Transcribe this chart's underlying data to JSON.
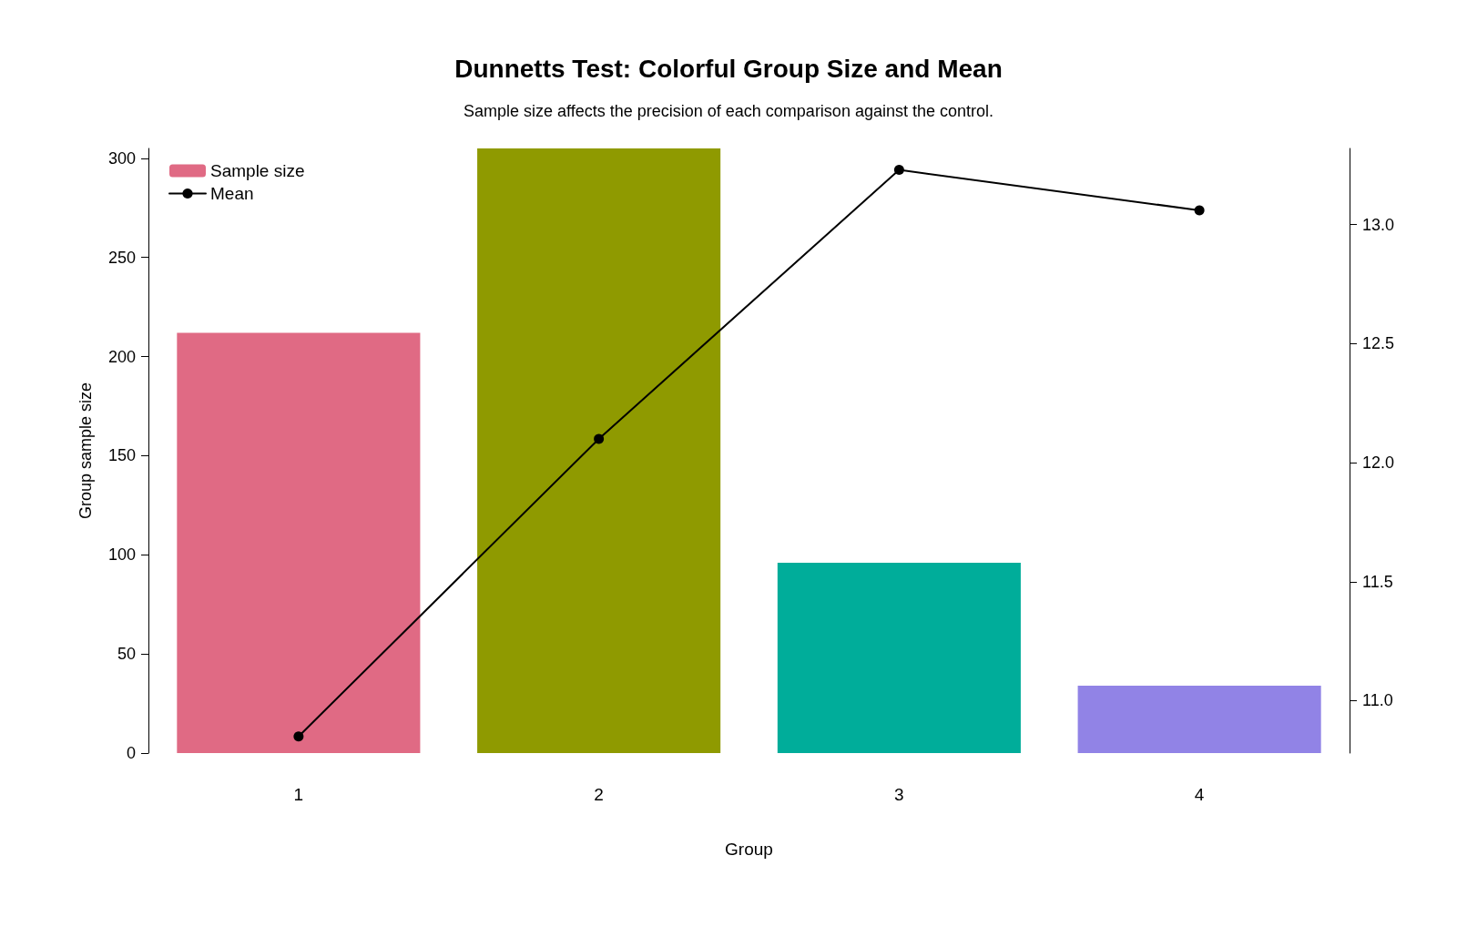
{
  "chart_data": {
    "type": "bar",
    "title": "Dunnetts Test: Colorful Group Size and Mean",
    "subtitle": "Sample size affects the precision of each comparison against the control.",
    "xlabel": "Group",
    "ylabel": "Group sample size",
    "categories": [
      "1",
      "2",
      "3",
      "4"
    ],
    "ylim": [
      0,
      305
    ],
    "yticks": [
      0,
      50,
      100,
      150,
      200,
      250,
      300
    ],
    "y2lim": [
      10.78,
      13.32
    ],
    "y2ticks": [
      {
        "value": 11,
        "label": "11.0"
      },
      {
        "value": 11.5,
        "label": "11.5"
      },
      {
        "value": 12,
        "label": "12.0"
      },
      {
        "value": 12.5,
        "label": "12.5"
      },
      {
        "value": 13,
        "label": "13.0"
      }
    ],
    "legend": "top left",
    "grid": false,
    "marker": "circle",
    "line_style": "solid",
    "series": [
      {
        "name": "Sample size",
        "colors": [
          "#e06a84",
          "#8f9a00",
          "#00ad9a",
          "#9183e6"
        ],
        "values": [
          212,
          305,
          96,
          34
        ]
      },
      {
        "name": "Mean",
        "type": "line",
        "axis": "y2",
        "color": "#000000",
        "values": [
          10.85,
          12.1,
          13.23,
          13.06
        ]
      }
    ]
  }
}
